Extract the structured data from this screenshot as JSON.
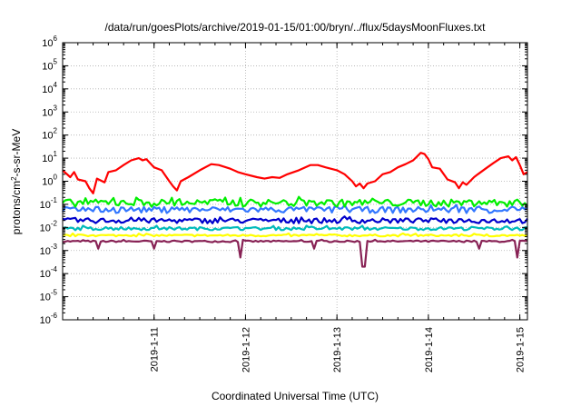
{
  "chart_data": {
    "type": "line",
    "title": "/data/run/goesPlots/archive/2019-01-15/01:00/bryn/../flux/5daysMoonFluxes.txt",
    "xlabel": "Coordinated Universal Time (UTC)",
    "ylabel": "protons/cm2-s-sr-MeV",
    "yscale": "log",
    "ylim": [
      1e-06,
      1000000.0
    ],
    "xlim": [
      "2019-01-10 00:00",
      "2019-01-15 02:00"
    ],
    "grid": true,
    "legend": "none",
    "y_tick_labels": [
      {
        "base": "10",
        "exp": "-6"
      },
      {
        "base": "10",
        "exp": "-5"
      },
      {
        "base": "10",
        "exp": "-4"
      },
      {
        "base": "10",
        "exp": "-3"
      },
      {
        "base": "10",
        "exp": "-2"
      },
      {
        "base": "10",
        "exp": "-1"
      },
      {
        "base": "10",
        "exp": "0"
      },
      {
        "base": "10",
        "exp": "1"
      },
      {
        "base": "10",
        "exp": "2"
      },
      {
        "base": "10",
        "exp": "3"
      },
      {
        "base": "10",
        "exp": "4"
      },
      {
        "base": "10",
        "exp": "5"
      },
      {
        "base": "10",
        "exp": "6"
      }
    ],
    "x_ticks": [
      {
        "label": "2019-1-11",
        "t": "2019-01-11 00:00"
      },
      {
        "label": "2019-1-12",
        "t": "2019-01-12 00:00"
      },
      {
        "label": "2019-1-13",
        "t": "2019-01-13 00:00"
      },
      {
        "label": "2019-1-14",
        "t": "2019-01-14 00:00"
      },
      {
        "label": "2019-1-15",
        "t": "2019-01-15 00:00"
      }
    ],
    "series": [
      {
        "color": "#ff0000",
        "points": [
          [
            "2019-01-10 00:00",
            3.0
          ],
          [
            "2019-01-10 02:00",
            1.5
          ],
          [
            "2019-01-10 03:00",
            2.5
          ],
          [
            "2019-01-10 04:00",
            1.2
          ],
          [
            "2019-01-10 06:00",
            1.0
          ],
          [
            "2019-01-10 07:00",
            0.5
          ],
          [
            "2019-01-10 08:00",
            0.3
          ],
          [
            "2019-01-10 09:00",
            1.3
          ],
          [
            "2019-01-10 11:00",
            0.9
          ],
          [
            "2019-01-10 12:00",
            2.5
          ],
          [
            "2019-01-10 14:00",
            3.0
          ],
          [
            "2019-01-10 16:00",
            5.0
          ],
          [
            "2019-01-10 18:00",
            8.0
          ],
          [
            "2019-01-10 20:00",
            10.0
          ],
          [
            "2019-01-10 21:00",
            8.0
          ],
          [
            "2019-01-10 22:00",
            9.0
          ],
          [
            "2019-01-11 00:00",
            4.0
          ],
          [
            "2019-01-11 02:00",
            3.0
          ],
          [
            "2019-01-11 04:00",
            1.0
          ],
          [
            "2019-01-11 05:00",
            0.6
          ],
          [
            "2019-01-11 06:00",
            0.4
          ],
          [
            "2019-01-11 07:00",
            1.0
          ],
          [
            "2019-01-11 09:00",
            1.5
          ],
          [
            "2019-01-11 12:00",
            3.0
          ],
          [
            "2019-01-11 15:00",
            5.5
          ],
          [
            "2019-01-11 17:00",
            5.0
          ],
          [
            "2019-01-11 20:00",
            3.5
          ],
          [
            "2019-01-11 22:00",
            2.5
          ],
          [
            "2019-01-12 00:00",
            2.0
          ],
          [
            "2019-01-12 03:00",
            1.5
          ],
          [
            "2019-01-12 05:00",
            1.3
          ],
          [
            "2019-01-12 07:00",
            1.5
          ],
          [
            "2019-01-12 09:00",
            1.4
          ],
          [
            "2019-01-12 11:00",
            2.0
          ],
          [
            "2019-01-12 14:00",
            3.0
          ],
          [
            "2019-01-12 17:00",
            5.0
          ],
          [
            "2019-01-12 19:00",
            5.0
          ],
          [
            "2019-01-12 21:00",
            4.0
          ],
          [
            "2019-01-13 00:00",
            3.0
          ],
          [
            "2019-01-13 02:00",
            2.0
          ],
          [
            "2019-01-13 04:00",
            1.0
          ],
          [
            "2019-01-13 05:00",
            0.6
          ],
          [
            "2019-01-13 06:00",
            0.8
          ],
          [
            "2019-01-13 07:00",
            0.5
          ],
          [
            "2019-01-13 08:00",
            0.8
          ],
          [
            "2019-01-13 10:00",
            1.0
          ],
          [
            "2019-01-13 12:00",
            2.0
          ],
          [
            "2019-01-13 14:00",
            2.5
          ],
          [
            "2019-01-13 16:00",
            4.0
          ],
          [
            "2019-01-13 18:00",
            5.5
          ],
          [
            "2019-01-13 20:00",
            8.0
          ],
          [
            "2019-01-13 22:00",
            17.0
          ],
          [
            "2019-01-13 23:00",
            15.0
          ],
          [
            "2019-01-14 00:00",
            9.0
          ],
          [
            "2019-01-14 01:00",
            4.0
          ],
          [
            "2019-01-14 03:00",
            3.5
          ],
          [
            "2019-01-14 05:00",
            1.2
          ],
          [
            "2019-01-14 07:00",
            0.9
          ],
          [
            "2019-01-14 08:00",
            0.5
          ],
          [
            "2019-01-14 09:00",
            0.9
          ],
          [
            "2019-01-14 10:00",
            0.7
          ],
          [
            "2019-01-14 12:00",
            1.5
          ],
          [
            "2019-01-14 13:00",
            2.0
          ],
          [
            "2019-01-14 15:00",
            3.5
          ],
          [
            "2019-01-14 17:00",
            6.0
          ],
          [
            "2019-01-14 19:00",
            10.0
          ],
          [
            "2019-01-14 21:00",
            12.0
          ],
          [
            "2019-01-14 22:00",
            8.0
          ],
          [
            "2019-01-14 23:00",
            11.0
          ],
          [
            "2019-01-15 00:00",
            5.0
          ],
          [
            "2019-01-15 01:00",
            2.0
          ],
          [
            "2019-01-15 02:00",
            2.5
          ]
        ]
      },
      {
        "color": "#00ee00",
        "level": 0.12,
        "noise": 0.35,
        "dips": []
      },
      {
        "color": "#3377ff",
        "level": 0.06,
        "noise": 0.3,
        "dips": []
      },
      {
        "color": "#0000cc",
        "level": 0.02,
        "noise": 0.25,
        "dips": []
      },
      {
        "color": "#00bbbb",
        "level": 0.009,
        "noise": 0.15,
        "dips": []
      },
      {
        "color": "#ffff00",
        "level": 0.0045,
        "noise": 0.1,
        "dips": []
      },
      {
        "color": "#882255",
        "level": 0.0025,
        "noise": 0.08,
        "dips": [
          [
            "2019-01-10 09:30",
            0.0012
          ],
          [
            "2019-01-11 00:00",
            0.0012
          ],
          [
            "2019-01-11 22:30",
            0.0005
          ],
          [
            "2019-01-12 18:00",
            0.0012
          ],
          [
            "2019-01-13 07:00",
            0.0002
          ],
          [
            "2019-01-14 13:30",
            0.0012
          ],
          [
            "2019-01-14 23:30",
            0.0005
          ]
        ]
      }
    ]
  }
}
